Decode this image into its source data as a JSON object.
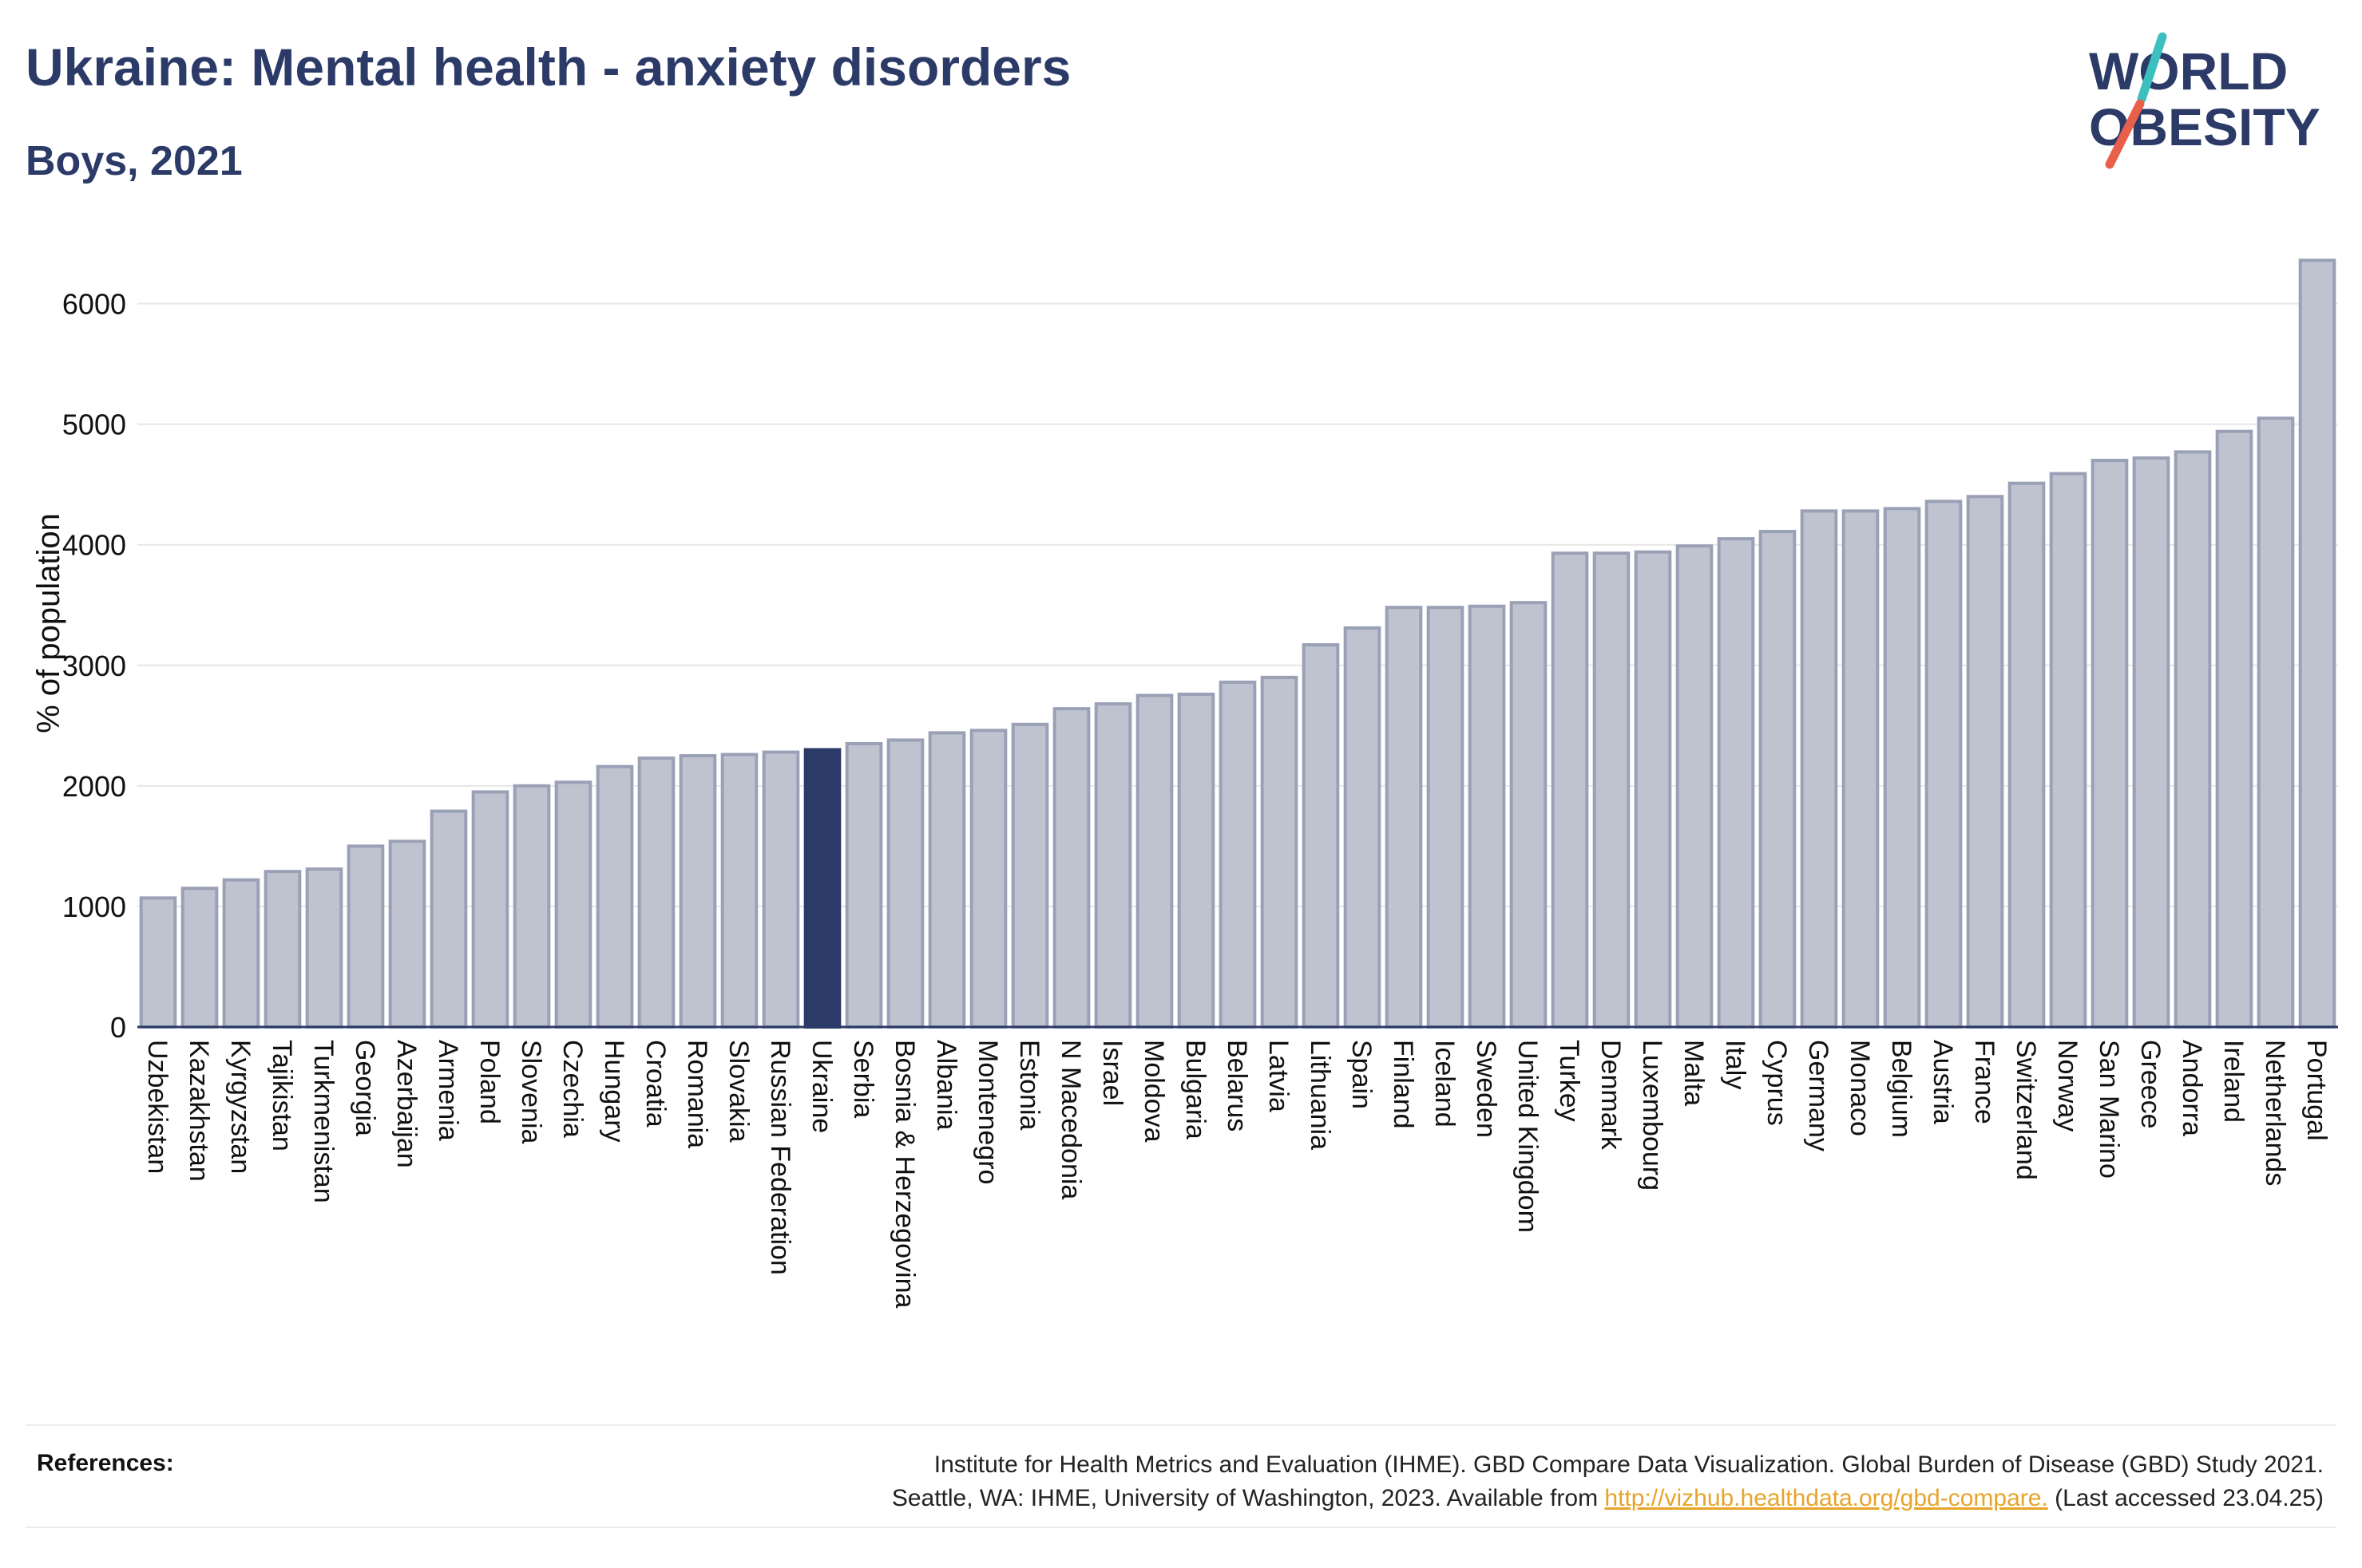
{
  "header": {
    "title": "Ukraine: Mental health - anxiety disorders",
    "subtitle": "Boys, 2021"
  },
  "logo": {
    "line1": "WORLD",
    "line2": "OBESITY",
    "colors": {
      "text": "#2b3a67",
      "slash_top": "#3bbfbf",
      "slash_bottom": "#e8604c"
    }
  },
  "colors": {
    "bar": "#bfc3d0",
    "bar_border": "#9aa1b6",
    "highlight": "#2b3a67",
    "grid": "#e6e6e6",
    "axis": "#2b3a67",
    "link": "#e8a42a"
  },
  "chart_data": {
    "type": "bar",
    "title": "Ukraine: Mental health - anxiety disorders",
    "subtitle": "Boys, 2021",
    "ylabel": "% of population",
    "xlabel": "",
    "ylim": [
      0,
      6500
    ],
    "yticks": [
      0,
      1000,
      2000,
      3000,
      4000,
      5000,
      6000
    ],
    "grid": true,
    "highlight": "Ukraine",
    "categories": [
      "Uzbekistan",
      "Kazakhstan",
      "Kyrgyzstan",
      "Tajikistan",
      "Turkmenistan",
      "Georgia",
      "Azerbaijan",
      "Armenia",
      "Poland",
      "Slovenia",
      "Czechia",
      "Hungary",
      "Croatia",
      "Romania",
      "Slovakia",
      "Russian Federation",
      "Ukraine",
      "Serbia",
      "Bosnia & Herzegovina",
      "Albania",
      "Montenegro",
      "Estonia",
      "N Macedonia",
      "Israel",
      "Moldova",
      "Bulgaria",
      "Belarus",
      "Latvia",
      "Lithuania",
      "Spain",
      "Finland",
      "Iceland",
      "Sweden",
      "United Kingdom",
      "Turkey",
      "Denmark",
      "Luxembourg",
      "Malta",
      "Italy",
      "Cyprus",
      "Germany",
      "Monaco",
      "Belgium",
      "Austria",
      "France",
      "Switzerland",
      "Norway",
      "San Marino",
      "Greece",
      "Andorra",
      "Ireland",
      "Netherlands",
      "Portugal"
    ],
    "values": [
      1070,
      1150,
      1220,
      1290,
      1310,
      1500,
      1540,
      1790,
      1950,
      2000,
      2030,
      2160,
      2230,
      2250,
      2260,
      2280,
      2300,
      2350,
      2380,
      2440,
      2460,
      2510,
      2640,
      2680,
      2750,
      2760,
      2860,
      2900,
      3170,
      3310,
      3480,
      3480,
      3490,
      3520,
      3930,
      3930,
      3940,
      3990,
      4050,
      4110,
      4280,
      4280,
      4300,
      4360,
      4400,
      4510,
      4590,
      4700,
      4720,
      4770,
      4940,
      5050,
      6360
    ]
  },
  "references": {
    "label": "References:",
    "line1": "Institute for Health Metrics and Evaluation (IHME). GBD Compare Data Visualization. Global Burden of Disease (GBD) Study 2021.",
    "line2_prefix": "Seattle, WA: IHME, University of Washington, 2023. Available from ",
    "link": "http://vizhub.healthdata.org/gbd-compare.",
    "line2_suffix": " (Last accessed 23.04.25)"
  }
}
